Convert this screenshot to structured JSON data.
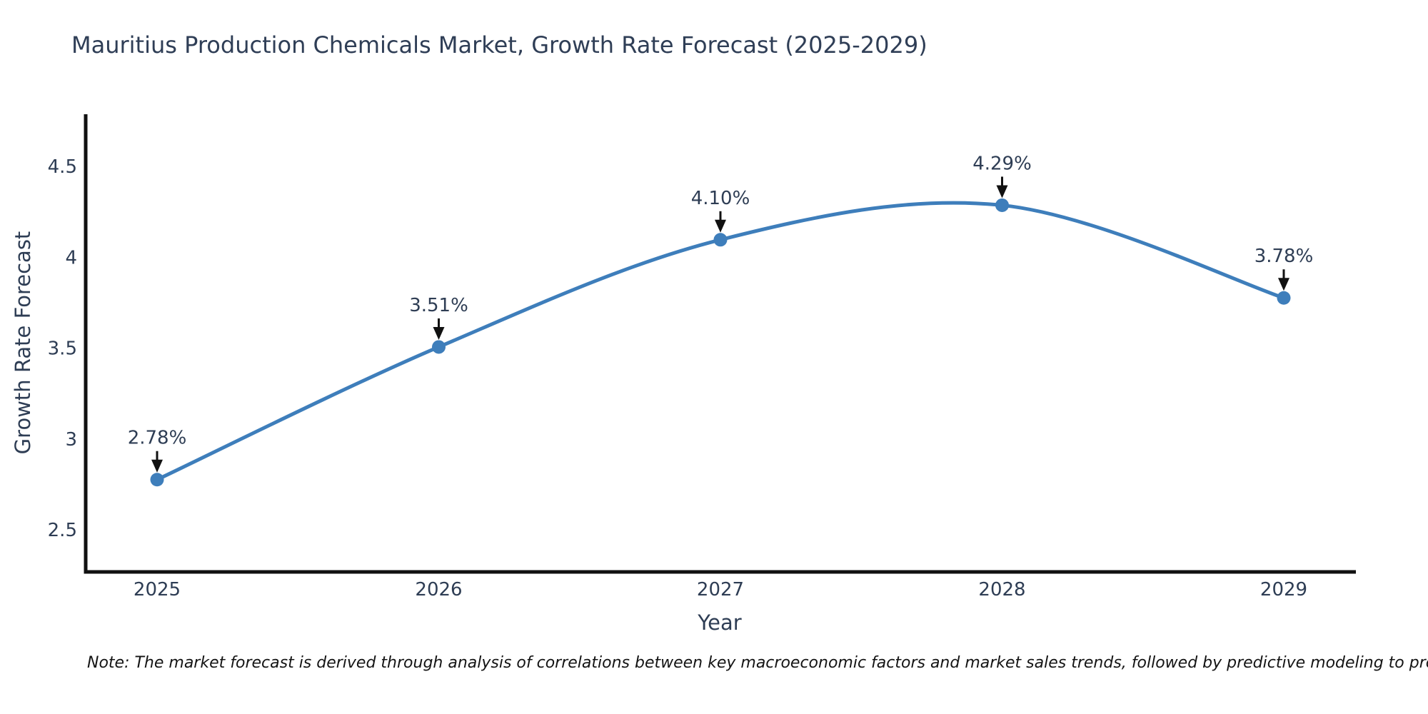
{
  "title": "Mauritius Production Chemicals Market, Growth Rate Forecast (2025-2029)",
  "note": "Note: The market forecast is derived through analysis of correlations between key macroeconomic factors and market sales trends, followed by predictive modeling to project future sales",
  "chart_data": {
    "type": "line",
    "title": "Mauritius Production Chemicals Market, Growth Rate Forecast (2025-2029)",
    "xlabel": "Year",
    "ylabel": "Growth Rate Forecast",
    "categories": [
      "2025",
      "2026",
      "2027",
      "2028",
      "2029"
    ],
    "series": [
      {
        "name": "Growth Rate Forecast",
        "values": [
          2.78,
          3.51,
          4.1,
          4.29,
          3.78
        ]
      }
    ],
    "point_labels": [
      "2.78%",
      "3.51%",
      "4.10%",
      "4.29%",
      "3.78%"
    ],
    "y_ticks": [
      {
        "value": 2.5,
        "label": "2.5"
      },
      {
        "value": 3,
        "label": "3"
      },
      {
        "value": 3.5,
        "label": "3.5"
      },
      {
        "value": 4,
        "label": "4"
      },
      {
        "value": 4.5,
        "label": "4.5"
      }
    ],
    "ylim": [
      2.28,
      4.79
    ],
    "grid": false,
    "legend": "none",
    "line_style": "smooth",
    "marker": "circle",
    "annotation_style": "text-with-down-arrow",
    "colors": {
      "line": "#3E7EBB",
      "marker": "#3E7EBB",
      "spine": "#111111",
      "text": "#2e3d54",
      "arrow": "#111111",
      "note_text": "#141414",
      "background": "#ffffff"
    }
  }
}
